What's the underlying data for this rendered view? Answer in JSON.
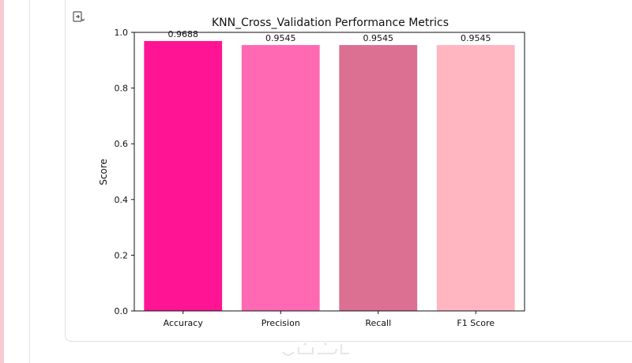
{
  "chart_data": {
    "type": "bar",
    "title": "KNN_Cross_Validation Performance Metrics",
    "xlabel": "",
    "ylabel": "Score",
    "categories": [
      "Accuracy",
      "Precision",
      "Recall",
      "F1 Score"
    ],
    "values": [
      0.9688,
      0.9545,
      0.9545,
      0.9545
    ],
    "value_labels": [
      "0.9688",
      "0.9545",
      "0.9545",
      "0.9545"
    ],
    "colors": [
      "#ff1493",
      "#ff69b4",
      "#db7093",
      "#ffb6c1"
    ],
    "ylim": [
      0,
      1.0
    ],
    "yticks": [
      0.0,
      0.2,
      0.4,
      0.6,
      0.8,
      1.0
    ],
    "ytick_labels": [
      "0.0",
      "0.2",
      "0.4",
      "0.6",
      "0.8",
      "1.0"
    ],
    "grid": false,
    "legend": "none"
  },
  "ui": {
    "output_toggle_icon": "output-collapse-icon",
    "accent_strip_color": "#f9c9d2"
  }
}
